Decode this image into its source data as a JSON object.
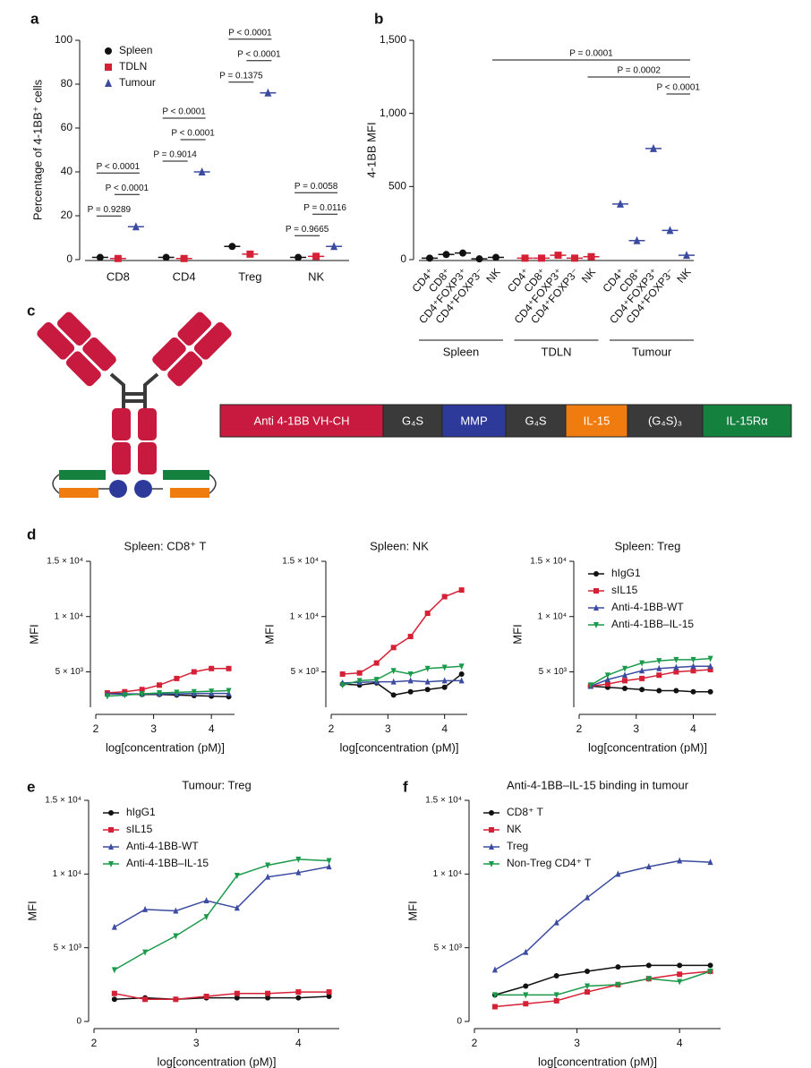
{
  "chart_data": [
    {
      "panel": "a",
      "type": "strip",
      "ylabel": "Percentage of 4-1BB⁺ cells",
      "categories": [
        "CD8",
        "CD4",
        "Treg",
        "NK"
      ],
      "series": [
        {
          "name": "Spleen",
          "color": "#111111",
          "marker": "circle",
          "values": [
            1,
            1,
            6,
            1
          ]
        },
        {
          "name": "TDLN",
          "color": "#d62035",
          "marker": "square",
          "values": [
            0.5,
            0.5,
            2.5,
            1.5
          ]
        },
        {
          "name": "Tumour",
          "color": "#3b4ba0",
          "marker": "triangle",
          "values": [
            15,
            40,
            76,
            6
          ]
        }
      ],
      "ylim": [
        0,
        100
      ],
      "yticks": [
        0,
        20,
        40,
        60,
        80,
        100
      ],
      "legend": "upper left",
      "comparisons": [
        {
          "text": "P = 0.9289",
          "category": 0,
          "from": 0,
          "to": 1
        },
        {
          "text": "P < 0.0001",
          "category": 0,
          "from": 1,
          "to": 2
        },
        {
          "text": "P < 0.0001",
          "category": 0,
          "from": 0,
          "to": 2
        },
        {
          "text": "P = 0.9014",
          "category": 1,
          "from": 0,
          "to": 1
        },
        {
          "text": "P < 0.0001",
          "category": 1,
          "from": 1,
          "to": 2
        },
        {
          "text": "P < 0.0001",
          "category": 1,
          "from": 0,
          "to": 2
        },
        {
          "text": "P = 0.1375",
          "category": 2,
          "from": 0,
          "to": 1
        },
        {
          "text": "P < 0.0001",
          "category": 2,
          "from": 1,
          "to": 2
        },
        {
          "text": "P < 0.0001",
          "category": 2,
          "from": 0,
          "to": 2
        },
        {
          "text": "P = 0.9665",
          "category": 3,
          "from": 0,
          "to": 1
        },
        {
          "text": "P = 0.0116",
          "category": 3,
          "from": 1,
          "to": 2
        },
        {
          "text": "P = 0.0058",
          "category": 3,
          "from": 0,
          "to": 2
        }
      ]
    },
    {
      "panel": "b",
      "type": "strip",
      "ylabel": "4-1BB MFI",
      "categories": [
        "CD4⁺",
        "CD8⁺",
        "CD4⁺FOXP3⁺",
        "CD4⁺FOXP3⁻",
        "NK",
        "CD4⁺",
        "CD8⁺",
        "CD4⁺FOXP3⁺",
        "CD4⁺FOXP3⁻",
        "NK",
        "CD4⁺",
        "CD8⁺",
        "CD4⁺FOXP3⁺",
        "CD4⁺FOXP3⁻",
        "NK"
      ],
      "groups": [
        "Spleen",
        "TDLN",
        "Tumour"
      ],
      "series": [
        {
          "color": "#111111",
          "marker": "circle",
          "values": [
            10,
            35,
            45,
            5,
            15,
            null,
            null,
            null,
            null,
            null,
            null,
            null,
            null,
            null,
            null
          ]
        },
        {
          "color": "#d62035",
          "marker": "square",
          "values": [
            null,
            null,
            null,
            null,
            null,
            10,
            10,
            30,
            10,
            20,
            null,
            null,
            null,
            null,
            null
          ]
        },
        {
          "color": "#3b4ba0",
          "marker": "triangle",
          "values": [
            null,
            null,
            null,
            null,
            null,
            null,
            null,
            null,
            null,
            null,
            380,
            130,
            760,
            200,
            30
          ]
        }
      ],
      "ylim": [
        0,
        1500
      ],
      "yticks": [
        0,
        500,
        {
          "value": 1000,
          "label": "1,000"
        },
        {
          "value": 1500,
          "label": "1,500"
        }
      ],
      "comparisons": [
        {
          "text": "P = 0.0001",
          "from": 4,
          "to": 14
        },
        {
          "text": "P = 0.0002",
          "from": 9,
          "to": 14
        },
        {
          "text": "P < 0.0001",
          "from": 13,
          "to": 14
        }
      ]
    },
    {
      "panel": "d",
      "type": "line",
      "title": "Spleen: CD8⁺ T",
      "xlabel": "log[concentration (pM)]",
      "ylabel": "MFI",
      "x": [
        2.2,
        2.5,
        2.8,
        3.1,
        3.4,
        3.7,
        4.0,
        4.3
      ],
      "xlim": [
        2,
        4.4
      ],
      "xticks": [
        2,
        3,
        4
      ],
      "ylim": [
        1800,
        15000
      ],
      "yticks": [
        {
          "value": 5000,
          "label": "5 × 10³"
        },
        {
          "value": 10000,
          "label": "1 × 10⁴"
        },
        {
          "value": 15000,
          "label": "1.5 × 10⁴"
        }
      ],
      "series": [
        {
          "color": "#111111",
          "marker": "circle",
          "values": [
            3100,
            3000,
            2950,
            2950,
            2900,
            2850,
            2800,
            2750
          ]
        },
        {
          "color": "#d62035",
          "marker": "square",
          "values": [
            3100,
            3200,
            3400,
            3800,
            4400,
            5000,
            5300,
            5300
          ]
        },
        {
          "color": "#3b4ba0",
          "marker": "triangle",
          "values": [
            3000,
            3000,
            3000,
            3000,
            3000,
            3050,
            3050,
            3050
          ]
        },
        {
          "color": "#1a9a4a",
          "marker": "tri-down",
          "values": [
            2800,
            2900,
            3000,
            3100,
            3150,
            3200,
            3250,
            3300
          ]
        }
      ]
    },
    {
      "panel": "",
      "type": "line",
      "title": "Spleen: NK",
      "xlabel": "log[concentration (pM)]",
      "ylabel": "MFI",
      "x": [
        2.2,
        2.5,
        2.8,
        3.1,
        3.4,
        3.7,
        4.0,
        4.3
      ],
      "xlim": [
        2,
        4.4
      ],
      "xticks": [
        2,
        3,
        4
      ],
      "ylim": [
        1800,
        15000
      ],
      "yticks": [
        {
          "value": 5000,
          "label": "5 × 10³"
        },
        {
          "value": 10000,
          "label": "1 × 10⁴"
        },
        {
          "value": 15000,
          "label": "1.5 × 10⁴"
        }
      ],
      "series": [
        {
          "color": "#111111",
          "marker": "circle",
          "values": [
            3900,
            3800,
            4000,
            2900,
            3200,
            3400,
            3600,
            4800
          ]
        },
        {
          "color": "#d62035",
          "marker": "square",
          "values": [
            4800,
            4900,
            5800,
            7200,
            8200,
            10300,
            11800,
            12400
          ]
        },
        {
          "color": "#3b4ba0",
          "marker": "triangle",
          "values": [
            4000,
            4050,
            4100,
            4100,
            4200,
            4100,
            4200,
            4200
          ]
        },
        {
          "color": "#1a9a4a",
          "marker": "tri-down",
          "values": [
            3800,
            4200,
            4300,
            5100,
            4800,
            5300,
            5400,
            5500
          ]
        }
      ]
    },
    {
      "panel": "",
      "type": "line",
      "title": "Spleen: Treg",
      "xlabel": "log[concentration (pM)]",
      "ylabel": "MFI",
      "x": [
        2.2,
        2.5,
        2.8,
        3.1,
        3.4,
        3.7,
        4.0,
        4.3
      ],
      "xlim": [
        2,
        4.4
      ],
      "xticks": [
        2,
        3,
        4
      ],
      "ylim": [
        1800,
        15000
      ],
      "yticks": [
        {
          "value": 5000,
          "label": "5 × 10³"
        },
        {
          "value": 10000,
          "label": "1 × 10⁴"
        },
        {
          "value": 15000,
          "label": "1.5 × 10⁴"
        }
      ],
      "legend": "upper left",
      "series": [
        {
          "name": "hIgG1",
          "color": "#111111",
          "marker": "circle",
          "values": [
            3700,
            3600,
            3500,
            3400,
            3300,
            3300,
            3200,
            3200
          ]
        },
        {
          "name": "sIL15",
          "color": "#d62035",
          "marker": "square",
          "values": [
            3700,
            3900,
            4200,
            4400,
            4700,
            5000,
            5100,
            5200
          ]
        },
        {
          "name": "Anti-4-1BB-WT",
          "color": "#3b4ba0",
          "marker": "triangle",
          "values": [
            3700,
            4300,
            4700,
            5100,
            5300,
            5400,
            5500,
            5500
          ]
        },
        {
          "name": "Anti-4-1BB–IL-15",
          "color": "#1a9a4a",
          "marker": "tri-down",
          "values": [
            3800,
            4700,
            5300,
            5800,
            6000,
            6100,
            6100,
            6200
          ]
        }
      ]
    },
    {
      "panel": "e",
      "type": "line",
      "title": "Tumour: Treg",
      "xlabel": "log[concentration (pM)]",
      "ylabel": "MFI",
      "x": [
        2.2,
        2.5,
        2.8,
        3.1,
        3.4,
        3.7,
        4.0,
        4.3
      ],
      "xlim": [
        2,
        4.4
      ],
      "xticks": [
        2,
        3,
        4
      ],
      "ylim": [
        0,
        15000
      ],
      "yticks": [
        0,
        {
          "value": 5000,
          "label": "5 × 10³"
        },
        {
          "value": 10000,
          "label": "1 × 10⁴"
        },
        {
          "value": 15000,
          "label": "1.5 × 10⁴"
        }
      ],
      "legend": "upper left",
      "series": [
        {
          "name": "hIgG1",
          "color": "#111111",
          "marker": "circle",
          "values": [
            1500,
            1600,
            1500,
            1600,
            1600,
            1600,
            1600,
            1700
          ]
        },
        {
          "name": "sIL15",
          "color": "#d62035",
          "marker": "square",
          "values": [
            1900,
            1500,
            1500,
            1700,
            1900,
            1900,
            2000,
            2000
          ]
        },
        {
          "name": "Anti-4-1BB-WT",
          "color": "#3b4ba0",
          "marker": "triangle",
          "values": [
            6400,
            7600,
            7500,
            8200,
            7700,
            9800,
            10100,
            10500
          ]
        },
        {
          "name": "Anti-4-1BB–IL-15",
          "color": "#1a9a4a",
          "marker": "tri-down",
          "values": [
            3500,
            4700,
            5800,
            7100,
            9900,
            10600,
            11000,
            10900
          ]
        }
      ]
    },
    {
      "panel": "f",
      "type": "line",
      "title": "Anti-4-1BB–IL-15 binding in tumour",
      "xlabel": "log[concentration (pM)]",
      "ylabel": "MFI",
      "x": [
        2.2,
        2.5,
        2.8,
        3.1,
        3.4,
        3.7,
        4.0,
        4.3
      ],
      "xlim": [
        2,
        4.4
      ],
      "xticks": [
        2,
        3,
        4
      ],
      "ylim": [
        0,
        15000
      ],
      "yticks": [
        0,
        {
          "value": 5000,
          "label": "5 × 10³"
        },
        {
          "value": 10000,
          "label": "1 × 10⁴"
        },
        {
          "value": 15000,
          "label": "1.5 × 10⁴"
        }
      ],
      "legend": "upper left",
      "series": [
        {
          "name": "CD8⁺ T",
          "color": "#111111",
          "marker": "circle",
          "values": [
            1800,
            2400,
            3100,
            3400,
            3700,
            3800,
            3800,
            3800
          ]
        },
        {
          "name": "NK",
          "color": "#d62035",
          "marker": "square",
          "values": [
            1000,
            1200,
            1400,
            2000,
            2500,
            2900,
            3200,
            3400
          ]
        },
        {
          "name": "Treg",
          "color": "#3b4ba0",
          "marker": "triangle",
          "values": [
            3500,
            4700,
            6700,
            8400,
            10000,
            10500,
            10900,
            10800
          ]
        },
        {
          "name": "Non-Treg CD4⁺ T",
          "color": "#1a9a4a",
          "marker": "tri-down",
          "values": [
            1800,
            1800,
            1800,
            2400,
            2500,
            2900,
            2700,
            3400
          ]
        }
      ]
    }
  ],
  "diagram": {
    "panel": "c",
    "segments": [
      {
        "text": "Anti 4-1BB VH-CH",
        "color": "#c8193f"
      },
      {
        "text": "G₄S",
        "color": "#3a3a3a"
      },
      {
        "text": "MMP",
        "color": "#2e3a9a"
      },
      {
        "text": "G₄S",
        "color": "#3a3a3a"
      },
      {
        "text": "IL-15",
        "color": "#f07c0f"
      },
      {
        "text": "(G₄S)₃",
        "color": "#3a3a3a"
      },
      {
        "text": "IL-15Rα",
        "color": "#14813f"
      }
    ]
  }
}
